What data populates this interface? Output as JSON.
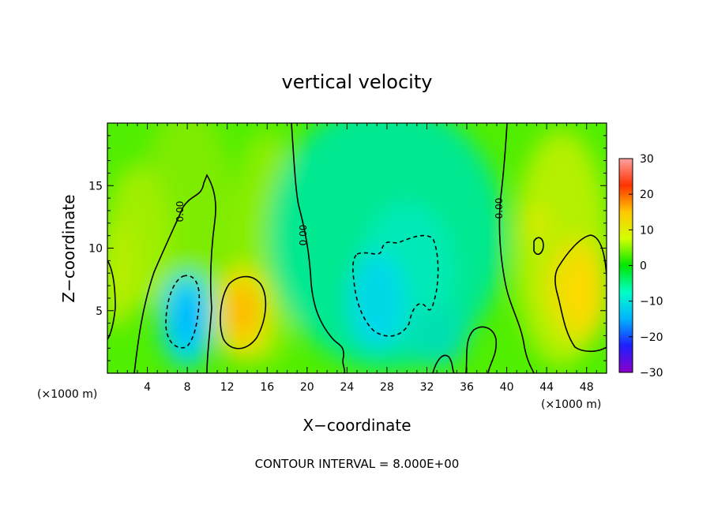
{
  "chart_data": {
    "type": "heatmap",
    "title": "vertical velocity",
    "xlabel": "X−coordinate",
    "ylabel": "Z−coordinate",
    "x_unit": "(×1000 m)",
    "y_unit": "(×1000 m)",
    "xlim": [
      0,
      50
    ],
    "ylim": [
      0,
      20
    ],
    "x_ticks": [
      4,
      8,
      12,
      16,
      20,
      24,
      28,
      32,
      36,
      40,
      44,
      48
    ],
    "y_ticks": [
      5,
      10,
      15
    ],
    "contour_interval_text": "CONTOUR INTERVAL = 8.000E+00",
    "contour_labels": [
      "0.00",
      "0.00",
      "0.00"
    ],
    "colorbar": {
      "min": -30,
      "max": 30,
      "ticks": [
        30,
        20,
        10,
        0,
        -10,
        -20,
        -30
      ],
      "tick_labels": [
        "30",
        "20",
        "10",
        "0",
        "−10",
        "−20",
        "−30"
      ],
      "colors": [
        "#8c00c8",
        "#1e1eff",
        "#00b4ff",
        "#00ffc8",
        "#00e600",
        "#d2ff00",
        "#ffc800",
        "#ff3200",
        "#ffa0a0"
      ]
    },
    "features": [
      {
        "name": "downdraft-core-1",
        "x": 8,
        "z": 4.5,
        "value": -10
      },
      {
        "name": "updraft-core-1",
        "x": 13.5,
        "z": 5,
        "value": 12
      },
      {
        "name": "downdraft-core-2",
        "x": 27,
        "z": 6,
        "value": -9
      },
      {
        "name": "updraft-core-2",
        "x": 47.5,
        "z": 6.5,
        "value": 11
      }
    ]
  }
}
